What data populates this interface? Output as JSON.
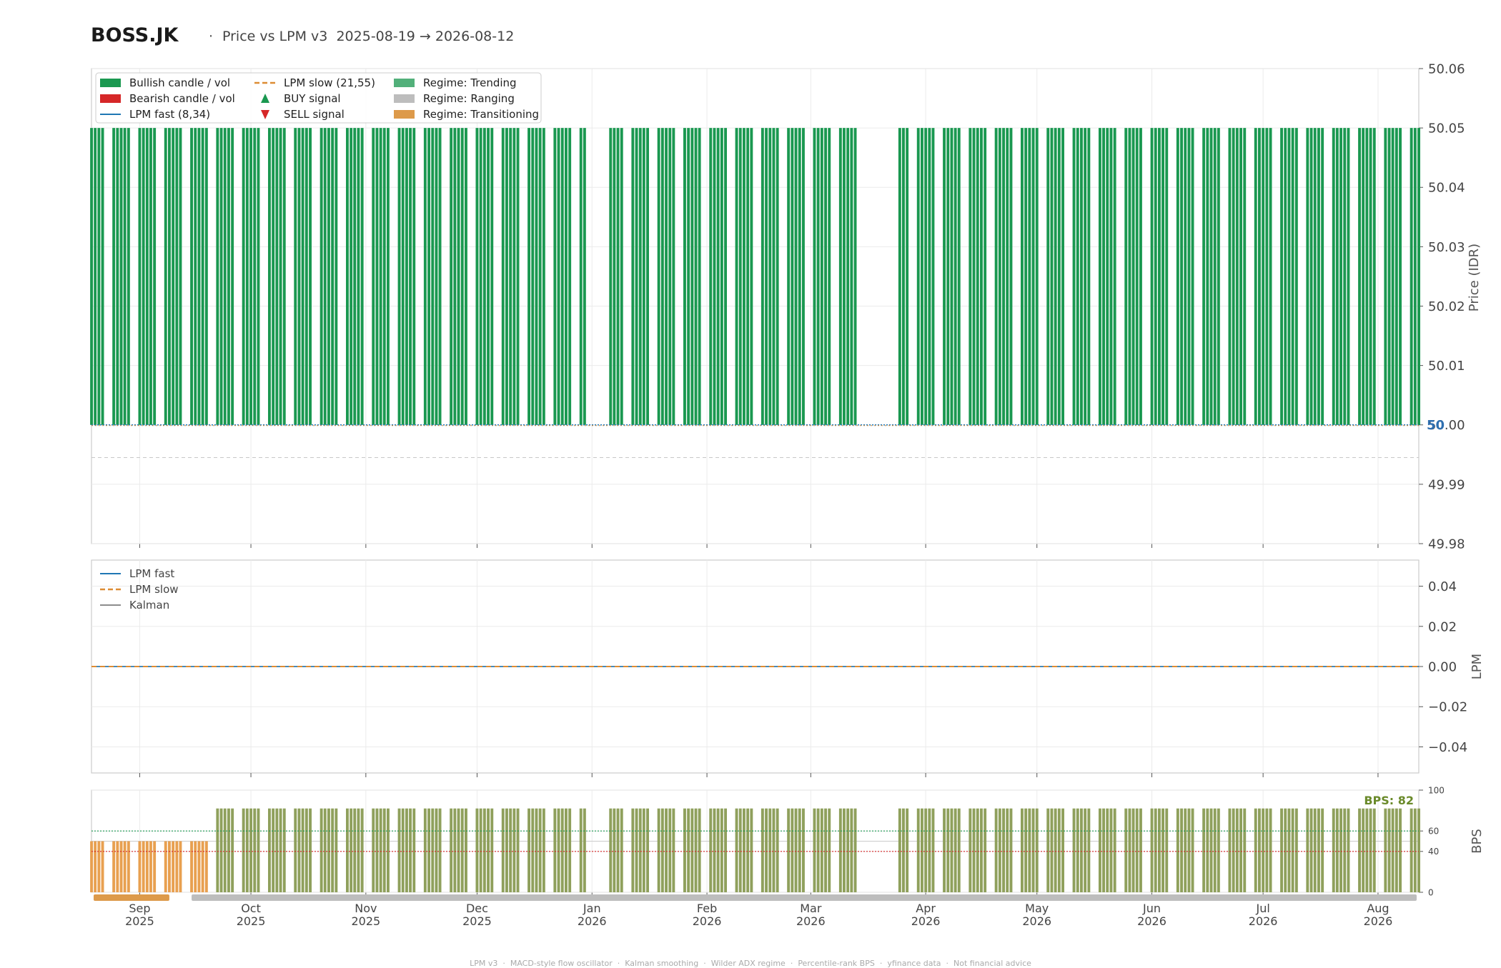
{
  "header": {
    "ticker": "BOSS.JK",
    "separator": "·",
    "subtitle": "Price vs LPM v3  2025-08-19 → 2026-08-12"
  },
  "footer": {
    "items": [
      "LPM v3",
      "MACD-style flow oscillator",
      "Kalman smoothing",
      "Wilder ADX regime",
      "Percentile-rank BPS",
      "yfinance data",
      "Not financial advice"
    ],
    "separator": "·"
  },
  "colors": {
    "bullish": "#1a9850",
    "bearish": "#d62728",
    "lpm_fast": "#1f77b4",
    "lpm_slow": "#dd8c33",
    "kalman": "#8c8c8c",
    "regime_trending": "#52b07a",
    "regime_ranging": "#bdbdbd",
    "regime_transitioning": "#dd9a4a",
    "bps_bar": "#8fa05c",
    "bps_bar_low": "#e8a050",
    "bps_label": "#6a8a2a",
    "last_price_label": "#2f6fb0"
  },
  "chart_data": [
    {
      "type": "bar",
      "panel": "price",
      "ylabel": "Price (IDR)",
      "ylim": [
        49.98,
        50.06
      ],
      "yticks": [
        "50.06",
        "50.05",
        "50.04",
        "50.03",
        "50.02",
        "50.01",
        "50.00",
        "49.99",
        "49.98"
      ],
      "last_price_label": "50",
      "bar_low": 50.0,
      "bar_high": 50.05,
      "x_range": [
        "2025-08-19",
        "2026-08-12"
      ],
      "gap_ranges": [
        [
          "2025-12-31",
          "2026-01-05"
        ],
        [
          "2026-03-14",
          "2026-03-24"
        ]
      ],
      "series_note_names": [
        "Bullish candle / vol"
      ],
      "legend": {
        "placement": "top-left",
        "entries": [
          {
            "label": "Bullish candle / vol",
            "kind": "patch",
            "color": "#1a9850"
          },
          {
            "label": "Bearish candle / vol",
            "kind": "patch",
            "color": "#d62728"
          },
          {
            "label": "LPM fast (8,34)",
            "kind": "line",
            "color": "#1f77b4"
          },
          {
            "label": "LPM slow (21,55)",
            "kind": "dash",
            "color": "#dd8c33"
          },
          {
            "label": "BUY signal",
            "kind": "up",
            "color": "#1a9850"
          },
          {
            "label": "SELL signal",
            "kind": "down",
            "color": "#d62728"
          },
          {
            "label": "Regime: Trending",
            "kind": "patch",
            "color": "#52b07a"
          },
          {
            "label": "Regime: Ranging",
            "kind": "patch",
            "color": "#bdbdbd"
          },
          {
            "label": "Regime: Transitioning",
            "kind": "patch",
            "color": "#dd9a4a"
          }
        ]
      },
      "grid": true
    },
    {
      "type": "line",
      "panel": "lpm",
      "ylabel": "LPM",
      "ylim": [
        -0.053,
        0.053
      ],
      "yticks": [
        "0.04",
        "0.02",
        "0.00",
        "−0.02",
        "−0.04"
      ],
      "series": [
        {
          "name": "LPM fast",
          "value": 0.0
        },
        {
          "name": "LPM slow",
          "value": 0.0
        },
        {
          "name": "Kalman",
          "value": 0.0
        }
      ],
      "legend": {
        "placement": "top-left"
      },
      "grid": true
    },
    {
      "type": "bar",
      "panel": "bps",
      "ylabel": "BPS",
      "ylim": [
        0,
        100
      ],
      "yticks": [
        "100",
        "60",
        "40",
        "0"
      ],
      "annotation": "BPS: 82",
      "early_value": 50,
      "later_value": 82,
      "later_from": "2025-09-20",
      "threshold_lines": [
        60,
        40
      ],
      "regime_strip": [
        {
          "regime": "Transitioning",
          "from": "2025-08-19",
          "to": "2025-09-09"
        },
        {
          "regime": "Ranging",
          "from": "2025-09-15",
          "to": "2026-08-12"
        }
      ],
      "grid": true
    }
  ],
  "x_axis": {
    "ticks": [
      {
        "date": "2025-09-01",
        "month": "Sep",
        "year": "2025"
      },
      {
        "date": "2025-10-01",
        "month": "Oct",
        "year": "2025"
      },
      {
        "date": "2025-11-01",
        "month": "Nov",
        "year": "2025"
      },
      {
        "date": "2025-12-01",
        "month": "Dec",
        "year": "2025"
      },
      {
        "date": "2026-01-01",
        "month": "Jan",
        "year": "2026"
      },
      {
        "date": "2026-02-01",
        "month": "Feb",
        "year": "2026"
      },
      {
        "date": "2026-03-01",
        "month": "Mar",
        "year": "2026"
      },
      {
        "date": "2026-04-01",
        "month": "Apr",
        "year": "2026"
      },
      {
        "date": "2026-05-01",
        "month": "May",
        "year": "2026"
      },
      {
        "date": "2026-06-01",
        "month": "Jun",
        "year": "2026"
      },
      {
        "date": "2026-07-01",
        "month": "Jul",
        "year": "2026"
      },
      {
        "date": "2026-08-01",
        "month": "Aug",
        "year": "2026"
      }
    ]
  }
}
